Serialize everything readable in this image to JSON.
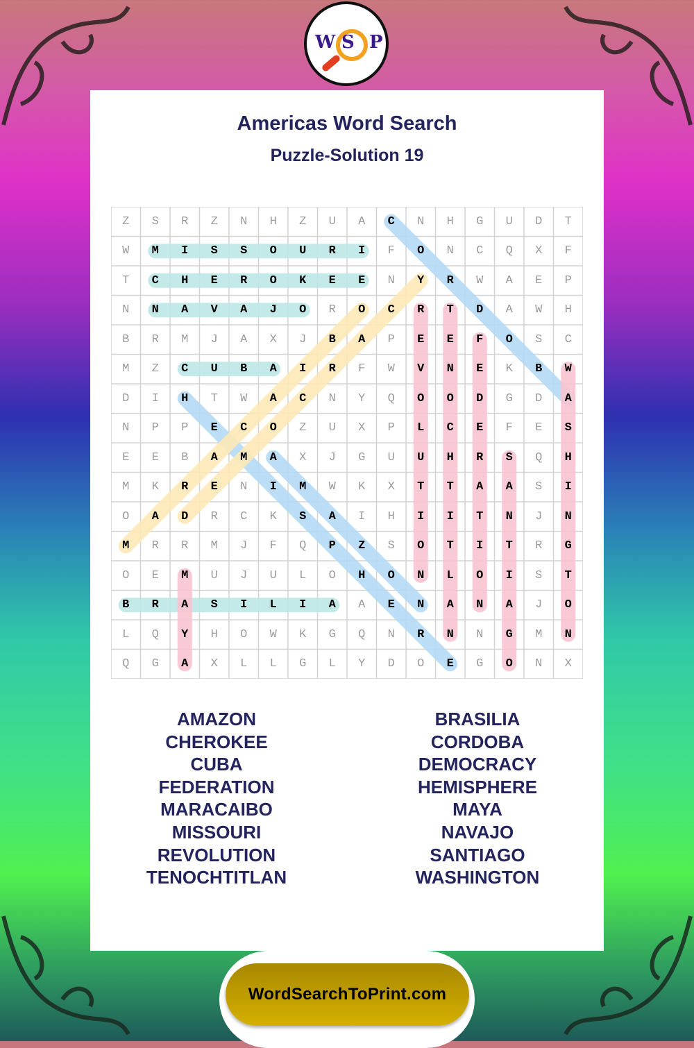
{
  "logo": {
    "letters": [
      "W",
      "S",
      "P"
    ]
  },
  "header": {
    "title": "Americas Word Search",
    "subtitle": "Puzzle-Solution 19"
  },
  "grid": [
    "ZSRZNHZUACNHGUDT",
    "WMISSOURIFONCQXF",
    "TCHEROKEENYRWAEP",
    "NNAVAJOROCRTDAWH",
    "BRMJAXJBAPEEFOSC",
    "MZCUBAIRFWVNEKBW",
    "DIHTWACNYQOODGDA",
    "NPPECOZUXPLCEFES",
    "EEBAMAXJGUUHRSQH",
    "MKRENIMWKXTTAASI",
    "OADRCKSAIHIITNJN",
    "MRRMJFQPZSOTITRG",
    "OEMUJULOHONLOIST",
    "BRASILIAAENANAJO",
    "LQYHOWKGQNRNNGMN",
    "QGAXLLGLYDOEGONX"
  ],
  "highlight_colors": {
    "teal": "#bde8e5",
    "blue": "#b4d9f4",
    "yellow": "#fde8b6",
    "pink": "#f8c3d0"
  },
  "highlights": [
    {
      "word": "MISSOURI",
      "start": [
        1,
        1
      ],
      "end": [
        1,
        8
      ],
      "color": "teal"
    },
    {
      "word": "CHEROKEE",
      "start": [
        2,
        1
      ],
      "end": [
        2,
        8
      ],
      "color": "teal"
    },
    {
      "word": "NAVAJO",
      "start": [
        3,
        1
      ],
      "end": [
        3,
        6
      ],
      "color": "teal"
    },
    {
      "word": "CUBA",
      "start": [
        5,
        2
      ],
      "end": [
        5,
        5
      ],
      "color": "teal"
    },
    {
      "word": "BRASILIA",
      "start": [
        13,
        0
      ],
      "end": [
        13,
        7
      ],
      "color": "teal"
    },
    {
      "word": "CORDOBA",
      "start": [
        0,
        9
      ],
      "end": [
        6,
        15
      ],
      "color": "blue"
    },
    {
      "word": "HEMISPHERE",
      "start": [
        6,
        2
      ],
      "end": [
        15,
        11
      ],
      "color": "blue"
    },
    {
      "word": "AMAZON",
      "start": [
        8,
        5
      ],
      "end": [
        13,
        10
      ],
      "color": "blue"
    },
    {
      "word": "DEMOCRACY",
      "start": [
        10,
        2
      ],
      "end": [
        2,
        10
      ],
      "color": "yellow"
    },
    {
      "word": "MARACAIBO",
      "start": [
        11,
        0
      ],
      "end": [
        3,
        8
      ],
      "color": "yellow"
    },
    {
      "word": "REVOLUTION",
      "start": [
        3,
        10
      ],
      "end": [
        12,
        10
      ],
      "color": "pink"
    },
    {
      "word": "TENOCHTITLAN",
      "start": [
        3,
        11
      ],
      "end": [
        14,
        11
      ],
      "color": "pink"
    },
    {
      "word": "FEDERATION",
      "start": [
        4,
        12
      ],
      "end": [
        13,
        12
      ],
      "color": "pink"
    },
    {
      "word": "SANTIAGO",
      "start": [
        8,
        13
      ],
      "end": [
        15,
        13
      ],
      "color": "pink"
    },
    {
      "word": "WASHINGTON",
      "start": [
        5,
        15
      ],
      "end": [
        14,
        15
      ],
      "color": "pink"
    },
    {
      "word": "MAYA",
      "start": [
        12,
        2
      ],
      "end": [
        15,
        2
      ],
      "color": "pink"
    }
  ],
  "word_list": {
    "left": [
      "AMAZON",
      "CHEROKEE",
      "CUBA",
      "FEDERATION",
      "MARACAIBO",
      "MISSOURI",
      "REVOLUTION",
      "TENOCHTITLAN"
    ],
    "right": [
      "BRASILIA",
      "CORDOBA",
      "DEMOCRACY",
      "HEMISPHERE",
      "MAYA",
      "NAVAJO",
      "SANTIAGO",
      "WASHINGTON"
    ]
  },
  "footer": {
    "site": "WordSearchToPrint.com"
  }
}
